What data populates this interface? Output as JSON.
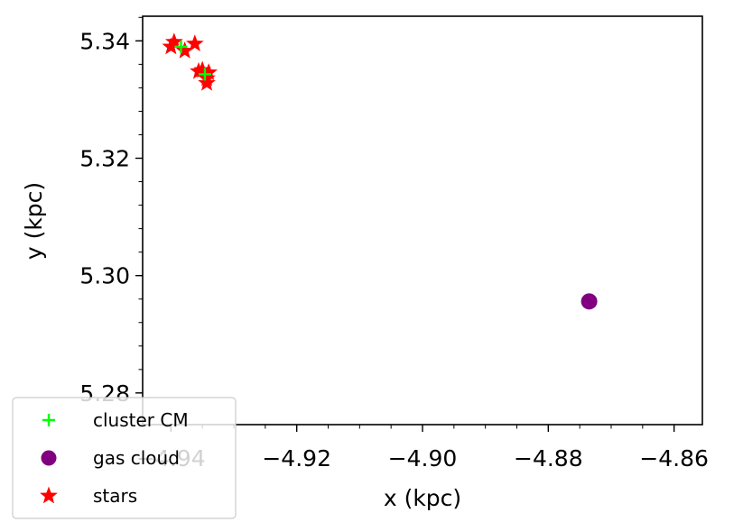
{
  "chart_data": {
    "type": "scatter",
    "xlabel": "x (kpc)",
    "ylabel": "y (kpc)",
    "xlim": [
      -4.9445,
      -4.8555
    ],
    "ylim": [
      5.2746,
      5.3442
    ],
    "x_ticks": [
      {
        "value": -4.94,
        "label": "−4.94"
      },
      {
        "value": -4.92,
        "label": "−4.92"
      },
      {
        "value": -4.9,
        "label": "−4.90"
      },
      {
        "value": -4.88,
        "label": "−4.88"
      },
      {
        "value": -4.86,
        "label": "−4.86"
      }
    ],
    "y_ticks": [
      {
        "value": 5.28,
        "label": "5.28"
      },
      {
        "value": 5.3,
        "label": "5.30"
      },
      {
        "value": 5.32,
        "label": "5.32"
      },
      {
        "value": 5.34,
        "label": "5.34"
      }
    ],
    "grid": false,
    "legend_position": "bottom-left",
    "series": [
      {
        "name": "cluster CM",
        "marker": "plus",
        "color": "#00ff00",
        "points": [
          [
            -4.9384,
            5.339
          ],
          [
            -4.9346,
            5.3343
          ]
        ]
      },
      {
        "name": "gas cloud",
        "marker": "circle",
        "color": "#800080",
        "points": [
          [
            -4.8735,
            5.2956
          ]
        ]
      },
      {
        "name": "stars",
        "marker": "star",
        "color": "#ff0000",
        "points": [
          [
            -4.94,
            5.339
          ],
          [
            -4.9395,
            5.3398
          ],
          [
            -4.9378,
            5.3383
          ],
          [
            -4.9362,
            5.3395
          ],
          [
            -4.9356,
            5.3348
          ],
          [
            -4.935,
            5.335
          ],
          [
            -4.9343,
            5.3336
          ],
          [
            -4.934,
            5.3346
          ],
          [
            -4.9343,
            5.3328
          ]
        ]
      }
    ]
  }
}
